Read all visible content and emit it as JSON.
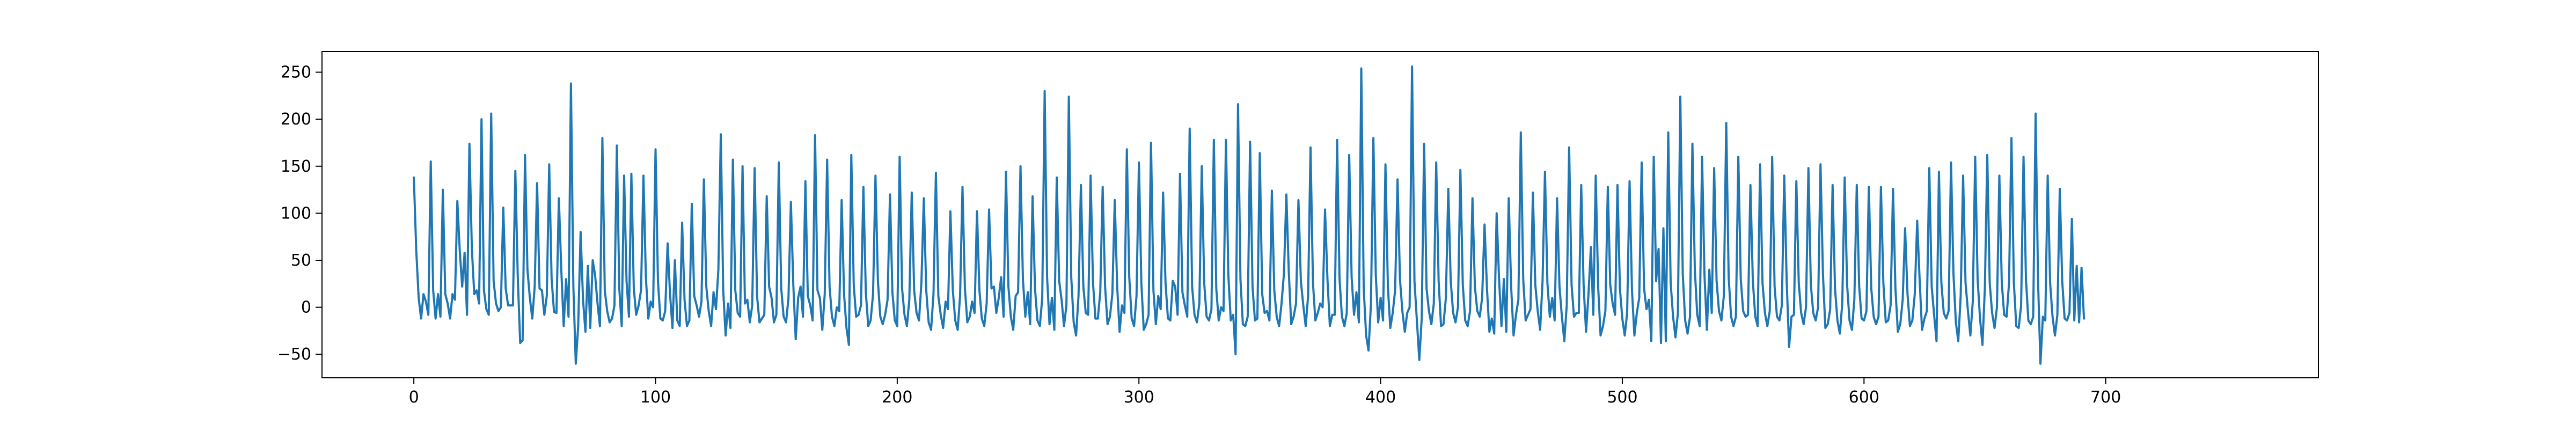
{
  "chart_data": {
    "type": "line",
    "title": "",
    "xlabel": "",
    "ylabel": "",
    "xlim": [
      -38,
      788
    ],
    "ylim": [
      -75,
      272
    ],
    "x_ticks": [
      0,
      100,
      200,
      300,
      400,
      500,
      600,
      700
    ],
    "x_tick_labels": [
      "0",
      "100",
      "200",
      "300",
      "400",
      "500",
      "600",
      "700"
    ],
    "y_ticks": [
      -50,
      0,
      50,
      100,
      150,
      200,
      250
    ],
    "y_tick_labels": [
      "−50",
      "0",
      "50",
      "100",
      "150",
      "200",
      "250"
    ],
    "grid": false,
    "legend": "none",
    "series": [
      {
        "color": "#1f77b4",
        "x_start": 0,
        "x_step": 1,
        "values": [
          138,
          60,
          10,
          -12,
          14,
          6,
          -8,
          155,
          18,
          -12,
          14,
          -10,
          125,
          14,
          4,
          -12,
          14,
          8,
          113,
          60,
          22,
          58,
          -8,
          174,
          62,
          14,
          18,
          4,
          200,
          18,
          -2,
          -8,
          206,
          28,
          4,
          -4,
          0,
          106,
          20,
          2,
          2,
          2,
          145,
          32,
          -38,
          -35,
          162,
          40,
          10,
          -12,
          22,
          132,
          20,
          18,
          -8,
          12,
          152,
          30,
          -5,
          -6,
          116,
          40,
          -20,
          30,
          -10,
          238,
          22,
          -60,
          -20,
          80,
          8,
          -26,
          44,
          -22,
          50,
          34,
          4,
          -20,
          180,
          18,
          -4,
          -16,
          -12,
          2,
          172,
          20,
          -20,
          140,
          28,
          -10,
          142,
          20,
          -8,
          2,
          18,
          140,
          32,
          -12,
          6,
          0,
          168,
          28,
          -12,
          -14,
          -4,
          68,
          14,
          -22,
          50,
          -14,
          -20,
          90,
          8,
          -20,
          -14,
          110,
          12,
          2,
          -10,
          6,
          136,
          22,
          -4,
          -20,
          16,
          -2,
          40,
          184,
          18,
          -30,
          4,
          -22,
          157,
          18,
          -6,
          -10,
          150,
          4,
          8,
          -16,
          2,
          148,
          12,
          -16,
          -12,
          -8,
          118,
          22,
          10,
          -16,
          -8,
          154,
          20,
          -10,
          -16,
          10,
          112,
          24,
          -34,
          10,
          22,
          -10,
          134,
          12,
          2,
          -14,
          183,
          18,
          10,
          -24,
          14,
          157,
          22,
          -10,
          -20,
          0,
          -4,
          114,
          14,
          -22,
          -40,
          162,
          24,
          -10,
          -8,
          2,
          128,
          16,
          -20,
          -14,
          14,
          140,
          28,
          -10,
          -18,
          -8,
          8,
          120,
          16,
          -14,
          -20,
          160,
          20,
          -8,
          -20,
          8,
          122,
          18,
          -6,
          -14,
          26,
          116,
          18,
          -16,
          -24,
          14,
          143,
          12,
          -8,
          -22,
          6,
          -2,
          102,
          18,
          -14,
          -24,
          12,
          128,
          20,
          -16,
          -10,
          6,
          -6,
          102,
          18,
          -12,
          -20,
          4,
          104,
          20,
          22,
          -6,
          10,
          32,
          -10,
          144,
          22,
          -10,
          -24,
          12,
          16,
          150,
          30,
          -10,
          16,
          -18,
          118,
          20,
          -14,
          -20,
          10,
          230,
          32,
          -18,
          10,
          -24,
          138,
          28,
          8,
          -20,
          2,
          224,
          32,
          -16,
          -30,
          12,
          130,
          22,
          -6,
          -8,
          140,
          26,
          -12,
          -12,
          16,
          128,
          22,
          -18,
          -10,
          14,
          114,
          22,
          -26,
          2,
          -6,
          168,
          32,
          -12,
          -20,
          12,
          154,
          26,
          -24,
          -18,
          -8,
          175,
          18,
          -18,
          12,
          -2,
          122,
          26,
          -12,
          -14,
          28,
          22,
          -8,
          142,
          16,
          2,
          -10,
          190,
          22,
          -8,
          -16,
          4,
          150,
          26,
          -10,
          -14,
          -2,
          178,
          20,
          -14,
          0,
          -4,
          178,
          34,
          -14,
          -8,
          -50,
          216,
          30,
          -18,
          -20,
          -10,
          176,
          22,
          -14,
          -12,
          164,
          14,
          -6,
          -4,
          -14,
          124,
          18,
          -10,
          -20,
          4,
          36,
          120,
          38,
          -18,
          -10,
          4,
          114,
          28,
          2,
          -20,
          12,
          170,
          26,
          -14,
          -6,
          4,
          0,
          104,
          30,
          -20,
          -8,
          -8,
          178,
          30,
          -10,
          -20,
          -6,
          162,
          32,
          -8,
          16,
          -16,
          254,
          20,
          -30,
          -46,
          4,
          180,
          34,
          -16,
          10,
          -14,
          152,
          22,
          -22,
          -6,
          18,
          136,
          30,
          -4,
          -26,
          -6,
          0,
          256,
          28,
          -14,
          -56,
          -12,
          174,
          20,
          -4,
          -18,
          4,
          154,
          28,
          -20,
          -18,
          10,
          126,
          28,
          -6,
          -16,
          0,
          146,
          24,
          -14,
          -20,
          -4,
          116,
          22,
          -4,
          -10,
          10,
          88,
          20,
          -26,
          -12,
          -28,
          100,
          30,
          -20,
          30,
          -26,
          116,
          22,
          -30,
          -8,
          8,
          186,
          30,
          -14,
          -8,
          -2,
          122,
          24,
          -4,
          -24,
          28,
          144,
          26,
          -10,
          10,
          -14,
          116,
          22,
          -10,
          -36,
          2,
          170,
          24,
          -10,
          -6,
          -6,
          130,
          22,
          -26,
          14,
          64,
          -8,
          140,
          22,
          -30,
          -20,
          -4,
          128,
          24,
          4,
          -8,
          130,
          20,
          -12,
          -30,
          -6,
          134,
          18,
          -30,
          -6,
          10,
          154,
          20,
          -2,
          8,
          -36,
          160,
          28,
          62,
          -38,
          84,
          -36,
          186,
          26,
          -10,
          -32,
          -6,
          224,
          36,
          -14,
          -28,
          -10,
          174,
          40,
          -8,
          -20,
          160,
          34,
          -24,
          40,
          -6,
          148,
          28,
          -4,
          -14,
          12,
          196,
          32,
          -10,
          -20,
          -10,
          160,
          30,
          -4,
          -10,
          -8,
          130,
          28,
          -10,
          -20,
          152,
          26,
          -6,
          -20,
          -4,
          160,
          22,
          -10,
          -14,
          2,
          140,
          28,
          -42,
          -10,
          -8,
          134,
          26,
          -6,
          -18,
          0,
          148,
          24,
          -6,
          -14,
          0,
          152,
          36,
          -22,
          -18,
          -2,
          130,
          20,
          -14,
          -28,
          4,
          138,
          24,
          -14,
          -24,
          8,
          130,
          22,
          -12,
          -14,
          -4,
          128,
          20,
          -10,
          -18,
          -10,
          128,
          26,
          -16,
          -14,
          2,
          126,
          20,
          -26,
          -18,
          8,
          84,
          14,
          -20,
          -14,
          14,
          92,
          30,
          -24,
          -12,
          -4,
          148,
          22,
          -8,
          -36,
          144,
          26,
          -6,
          -12,
          -4,
          154,
          36,
          -16,
          -36,
          12,
          140,
          26,
          -4,
          -30,
          6,
          160,
          30,
          -12,
          -40,
          20,
          162,
          26,
          -6,
          -22,
          0,
          140,
          26,
          -8,
          -10,
          26,
          180,
          26,
          -20,
          -22,
          2,
          160,
          30,
          -14,
          -18,
          -10,
          206,
          28,
          -60,
          -10,
          -14,
          140,
          26,
          -10,
          -30,
          -8,
          126,
          28,
          -12,
          -14,
          -6,
          94,
          -14,
          44,
          -16,
          42,
          -12
        ]
      }
    ]
  }
}
